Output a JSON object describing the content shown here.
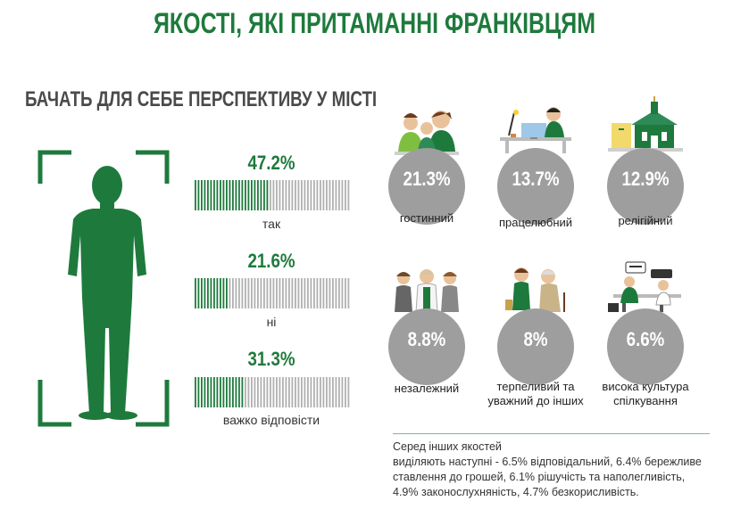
{
  "header": {
    "title": "ЯКОСТІ, ЯКІ ПРИТАМАННІ ФРАНКІВЦЯМ"
  },
  "perspective": {
    "subtitle": "БАЧАТЬ ДЛЯ СЕБЕ ПЕРСПЕКТИВУ У МІСТІ"
  },
  "chart_data": [
    {
      "type": "bar",
      "title": "БАЧАТЬ ДЛЯ СЕБЕ ПЕРСПЕКТИВУ У МІСТІ",
      "unit": "%",
      "categories": [
        "так",
        "ні",
        "важко відповісти"
      ],
      "values": [
        47.2,
        21.6,
        31.3
      ],
      "labels": [
        "47.2%",
        "21.6%",
        "31.3%"
      ],
      "ylim": [
        0,
        100
      ]
    },
    {
      "type": "table",
      "categories": [
        "гостинний",
        "працелюбний",
        "релігійний",
        "незалежний",
        "терпеливий та уважний до інших",
        "висока культура спілкування"
      ],
      "values": [
        21.3,
        13.7,
        12.9,
        8.8,
        8,
        6.6
      ],
      "labels": [
        "21.3%",
        "13.7%",
        "12.9%",
        "8.8%",
        "8%",
        "6.6%"
      ]
    }
  ],
  "qualities": [
    {
      "label": "гостинний",
      "value": "21.3%",
      "icon": "family-icon"
    },
    {
      "label": "працелюбний",
      "value": "13.7%",
      "icon": "worker-desk-icon"
    },
    {
      "label": "релігійний",
      "value": "12.9%",
      "icon": "church-icon"
    },
    {
      "label": "незалежний",
      "value": "8.8%",
      "icon": "group-people-icon"
    },
    {
      "label": "терпеливий та уважний до інших",
      "value": "8%",
      "icon": "elderly-help-icon"
    },
    {
      "label": "висока культура спілкування",
      "value": "6.6%",
      "icon": "conversation-icon"
    }
  ],
  "note": {
    "line1": "Серед інших якостей",
    "line2": "виділяють наступні - 6.5% відповідальний, 6.4% бережливе ставлення до грошей, 6.1%  рішучість та наполегливість, 4.9% законослухняність, 4.7% безкорисливість."
  },
  "colors": {
    "green": "#1e7a3c",
    "gray_circle": "#9e9e9e",
    "bar_gray": "#b0b0b0"
  }
}
